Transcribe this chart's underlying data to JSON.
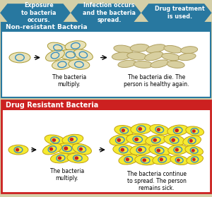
{
  "bg_color": "#d4cfa8",
  "top_arrows": [
    {
      "text": "Exposure\nto bacteria\noccurs.",
      "color": "#2878a0"
    },
    {
      "text": "Infection occurs\nand the bacteria\nspread.",
      "color": "#2878a0"
    },
    {
      "text": "Drug treatment\nis used.",
      "color": "#2878a0"
    }
  ],
  "section1": {
    "title": "Non-resistant Bacteria",
    "title_color": "#ffffff",
    "title_bg": "#2878a0",
    "border_color": "#2878a0",
    "bg_color": "#ffffff",
    "caption1": "The bacteria\nmultiply.",
    "caption2": "The bacteria die. The\nperson is healthy again.",
    "bacteria_color": "#e8e2b8",
    "bacteria_border": "#a89830",
    "nucleus_color": "#3a8fc0"
  },
  "section2": {
    "title": "Drug Resistant Bacteria",
    "title_color": "#ffffff",
    "title_bg": "#cc2020",
    "border_color": "#cc2020",
    "bg_color": "#ffffff",
    "caption1": "The bacteria\nmultiply.",
    "caption2": "The bacteria continue\nto spread. The person\nremains sick.",
    "bacteria_color": "#f5ea30",
    "bacteria_border": "#c0a010",
    "nucleus_color": "#3a8fc0",
    "nucleus2_color": "#cc2020"
  }
}
